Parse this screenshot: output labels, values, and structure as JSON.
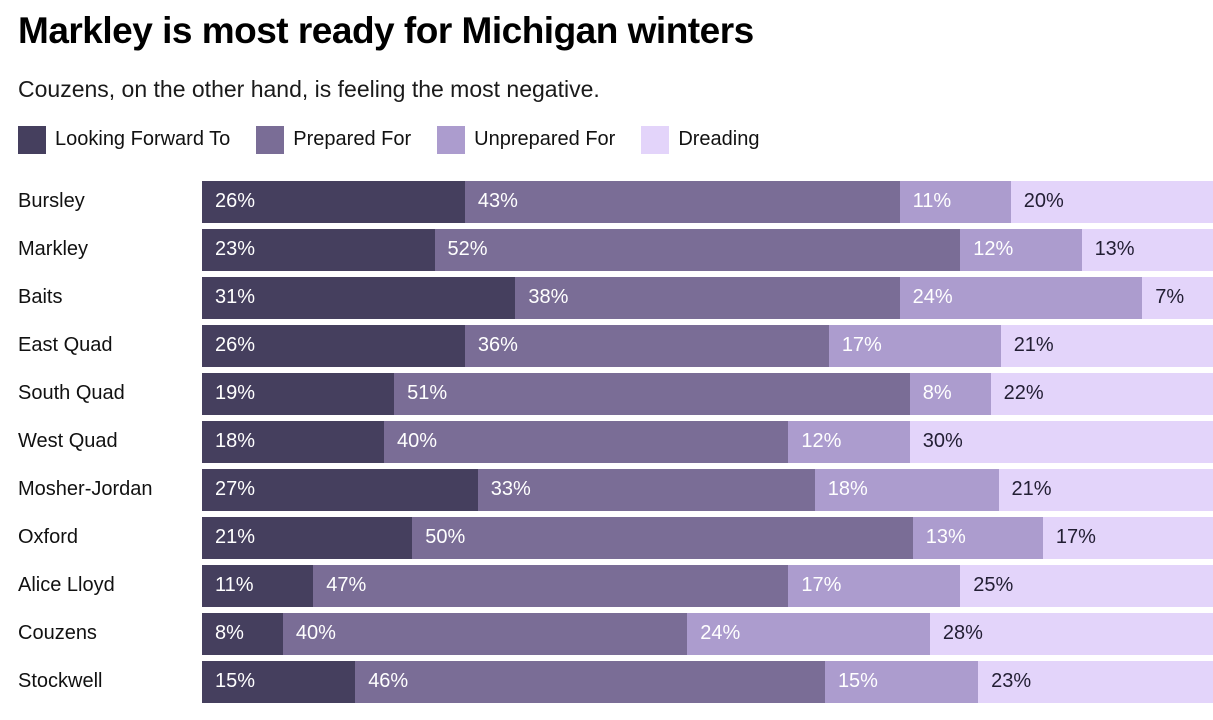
{
  "header": {
    "title": "Markley is most ready for Michigan winters",
    "subtitle": "Couzens, on the other hand, is feeling the most negative."
  },
  "chart_data": {
    "type": "bar",
    "orientation": "horizontal",
    "stacked": true,
    "value_unit": "percent",
    "value_suffix": "%",
    "title": "Markley is most ready for Michigan winters",
    "subtitle": "Couzens, on the other hand, is feeling the most negative.",
    "legend_position": "top",
    "categories": [
      "Bursley",
      "Markley",
      "Baits",
      "East Quad",
      "South Quad",
      "West Quad",
      "Mosher-Jordan",
      "Oxford",
      "Alice Lloyd",
      "Couzens",
      "Stockwell"
    ],
    "series": [
      {
        "name": "Looking Forward To",
        "color": "#453f5e",
        "text_color": "#ffffff",
        "values": [
          26,
          23,
          31,
          26,
          19,
          18,
          27,
          21,
          11,
          8,
          15
        ]
      },
      {
        "name": "Prepared For",
        "color": "#7a6d96",
        "text_color": "#ffffff",
        "values": [
          43,
          52,
          38,
          36,
          51,
          40,
          33,
          50,
          47,
          40,
          46
        ]
      },
      {
        "name": "Unprepared For",
        "color": "#ac9cce",
        "text_color": "#ffffff",
        "values": [
          11,
          12,
          24,
          17,
          8,
          12,
          18,
          13,
          17,
          24,
          15
        ]
      },
      {
        "name": "Dreading",
        "color": "#e3d4fa",
        "text_color": "#221e33",
        "values": [
          20,
          13,
          7,
          21,
          22,
          30,
          21,
          17,
          25,
          28,
          23
        ]
      }
    ]
  }
}
